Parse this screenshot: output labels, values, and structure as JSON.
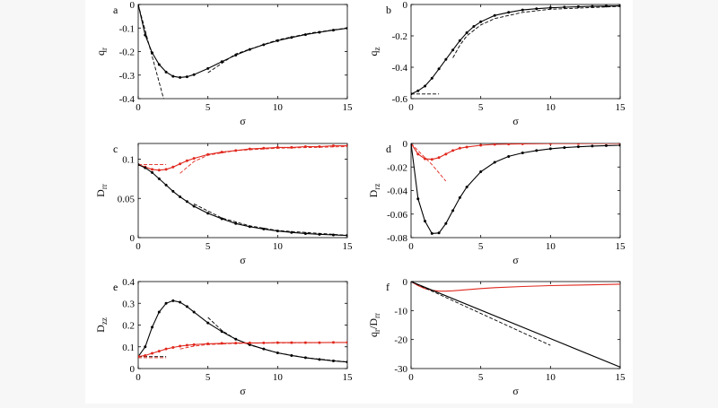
{
  "figure": {
    "chart_data": [
      {
        "panel_letter": "a",
        "type": "line",
        "xlabel": "σ",
        "ylabel": "q",
        "ylabel_sub": "r",
        "xlim": [
          0,
          15
        ],
        "ylim": [
          -0.4,
          0
        ],
        "xticks": [
          0,
          5,
          10,
          15
        ],
        "xtick_labels": [
          "0",
          "5",
          "10",
          "15"
        ],
        "yticks": [
          0,
          -0.1,
          -0.2,
          -0.3,
          -0.4
        ],
        "ytick_labels": [
          "0",
          "-0.1",
          "-0.2",
          "-0.3",
          "-0.4"
        ],
        "grid": false,
        "series": [
          {
            "color": "#000000",
            "style": "solid",
            "markers": true,
            "x": [
              0,
              0.5,
              1,
              1.5,
              2,
              2.5,
              3,
              3.5,
              4,
              5,
              6,
              7,
              8,
              9,
              10,
              11,
              12,
              13,
              14,
              15
            ],
            "y": [
              0,
              -0.13,
              -0.205,
              -0.255,
              -0.287,
              -0.305,
              -0.31,
              -0.307,
              -0.298,
              -0.272,
              -0.243,
              -0.215,
              -0.191,
              -0.171,
              -0.154,
              -0.14,
              -0.128,
              -0.118,
              -0.109,
              -0.101
            ]
          },
          {
            "color": "#000000",
            "style": "dashed",
            "markers": false,
            "x": [
              0,
              0.5,
              1,
              1.5,
              2
            ],
            "y": [
              0,
              -0.11,
              -0.22,
              -0.33,
              -0.44
            ]
          },
          {
            "color": "#000000",
            "style": "dashed",
            "markers": false,
            "x": [
              5,
              7,
              10,
              12.5,
              15
            ],
            "y": [
              -0.29,
              -0.21,
              -0.15,
              -0.12,
              -0.1
            ]
          }
        ]
      },
      {
        "panel_letter": "b",
        "type": "line",
        "xlabel": "σ",
        "ylabel": "q",
        "ylabel_sub": "z",
        "xlim": [
          0,
          15
        ],
        "ylim": [
          -0.6,
          0
        ],
        "xticks": [
          0,
          5,
          10,
          15
        ],
        "xtick_labels": [
          "0",
          "5",
          "10",
          "15"
        ],
        "yticks": [
          0,
          -0.2,
          -0.4,
          -0.6
        ],
        "ytick_labels": [
          "0",
          "-0.2",
          "-0.4",
          "-0.6"
        ],
        "grid": false,
        "series": [
          {
            "color": "#000000",
            "style": "solid",
            "markers": true,
            "x": [
              0,
              0.5,
              1,
              1.5,
              2,
              2.5,
              3,
              3.5,
              4,
              4.5,
              5,
              6,
              7,
              8,
              9,
              10,
              11,
              12,
              13,
              14,
              15
            ],
            "y": [
              -0.57,
              -0.55,
              -0.52,
              -0.47,
              -0.41,
              -0.35,
              -0.29,
              -0.23,
              -0.18,
              -0.14,
              -0.11,
              -0.07,
              -0.05,
              -0.035,
              -0.027,
              -0.021,
              -0.017,
              -0.014,
              -0.012,
              -0.01,
              -0.009
            ]
          },
          {
            "color": "#000000",
            "style": "dashed",
            "markers": false,
            "x": [
              0,
              2
            ],
            "y": [
              -0.57,
              -0.57
            ]
          },
          {
            "color": "#000000",
            "style": "dashed",
            "markers": false,
            "x": [
              3,
              3.5,
              4,
              5,
              6,
              8,
              10,
              15
            ],
            "y": [
              -0.34,
              -0.26,
              -0.2,
              -0.13,
              -0.09,
              -0.05,
              -0.03,
              -0.012
            ]
          }
        ]
      },
      {
        "panel_letter": "c",
        "type": "line",
        "xlabel": "σ",
        "ylabel": "D",
        "ylabel_sub": "rr",
        "xlim": [
          0,
          15
        ],
        "ylim": [
          0,
          0.12
        ],
        "xticks": [
          0,
          5,
          10,
          15
        ],
        "xtick_labels": [
          "0",
          "5",
          "10",
          "15"
        ],
        "yticks": [
          0,
          0.05,
          0.1
        ],
        "ytick_labels": [
          "0",
          "0.05",
          "0.1"
        ],
        "grid": false,
        "series": [
          {
            "color": "#e0281e",
            "style": "solid",
            "markers": true,
            "x": [
              0,
              0.5,
              1,
              1.5,
              2,
              2.5,
              3,
              3.5,
              4,
              5,
              6,
              7,
              8,
              9,
              10,
              11,
              12,
              13,
              14,
              15
            ],
            "y": [
              0.093,
              0.09,
              0.087,
              0.086,
              0.087,
              0.09,
              0.094,
              0.098,
              0.101,
              0.106,
              0.109,
              0.111,
              0.113,
              0.114,
              0.115,
              0.115,
              0.116,
              0.116,
              0.117,
              0.117
            ]
          },
          {
            "color": "#e0281e",
            "style": "dashed",
            "markers": false,
            "x": [
              0,
              2
            ],
            "y": [
              0.093,
              0.093
            ]
          },
          {
            "color": "#e0281e",
            "style": "dashed",
            "markers": false,
            "x": [
              3,
              4,
              5,
              7,
              10,
              15
            ],
            "y": [
              0.082,
              0.097,
              0.105,
              0.111,
              0.114,
              0.116
            ]
          },
          {
            "color": "#000000",
            "style": "solid",
            "markers": true,
            "x": [
              0,
              0.5,
              1,
              1.5,
              2,
              2.5,
              3,
              3.5,
              4,
              5,
              6,
              7,
              8,
              9,
              10,
              11,
              12,
              13,
              14,
              15
            ],
            "y": [
              0.093,
              0.089,
              0.083,
              0.075,
              0.067,
              0.059,
              0.052,
              0.046,
              0.04,
              0.031,
              0.024,
              0.018,
              0.014,
              0.011,
              0.0085,
              0.0066,
              0.0052,
              0.0042,
              0.0034,
              0.0028
            ]
          },
          {
            "color": "#000000",
            "style": "dashed",
            "markers": false,
            "x": [
              4,
              5,
              6,
              8,
              10,
              15
            ],
            "y": [
              0.043,
              0.034,
              0.025,
              0.015,
              0.009,
              0.003
            ]
          }
        ]
      },
      {
        "panel_letter": "d",
        "type": "line",
        "xlabel": "σ",
        "ylabel": "D",
        "ylabel_sub": "rz",
        "xlim": [
          0,
          15
        ],
        "ylim": [
          -0.08,
          0
        ],
        "xticks": [
          0,
          5,
          10,
          15
        ],
        "xtick_labels": [
          "0",
          "5",
          "10",
          "15"
        ],
        "yticks": [
          0,
          -0.02,
          -0.04,
          -0.06,
          -0.08
        ],
        "ytick_labels": [
          "0",
          "-0.02",
          "-0.04",
          "-0.06",
          "-0.08"
        ],
        "grid": false,
        "series": [
          {
            "color": "#e0281e",
            "style": "solid",
            "markers": true,
            "x": [
              0,
              0.5,
              1,
              1.5,
              2,
              2.5,
              3,
              3.5,
              4,
              5,
              6,
              7,
              8,
              10,
              12,
              15
            ],
            "y": [
              0,
              -0.009,
              -0.013,
              -0.0135,
              -0.012,
              -0.009,
              -0.006,
              -0.004,
              -0.003,
              -0.0015,
              -0.0008,
              -0.0005,
              -0.0003,
              -0.0001,
              -5e-05,
              0
            ]
          },
          {
            "color": "#e0281e",
            "style": "dashed",
            "markers": false,
            "x": [
              0,
              0.5,
              1,
              1.5,
              2,
              2.5
            ],
            "y": [
              0,
              -0.006,
              -0.012,
              -0.018,
              -0.025,
              -0.032
            ]
          },
          {
            "color": "#000000",
            "style": "solid",
            "markers": true,
            "x": [
              0,
              0.5,
              1,
              1.5,
              2,
              2.5,
              3,
              3.5,
              4,
              5,
              6,
              7,
              8,
              9,
              10,
              11,
              12,
              13,
              14,
              15
            ],
            "y": [
              0,
              -0.047,
              -0.066,
              -0.0765,
              -0.076,
              -0.068,
              -0.057,
              -0.046,
              -0.037,
              -0.024,
              -0.016,
              -0.011,
              -0.008,
              -0.006,
              -0.0045,
              -0.0035,
              -0.0028,
              -0.0022,
              -0.0018,
              -0.0015
            ]
          }
        ]
      },
      {
        "panel_letter": "e",
        "type": "line",
        "xlabel": "σ",
        "ylabel": "D",
        "ylabel_sub": "zz",
        "xlim": [
          0,
          15
        ],
        "ylim": [
          0,
          0.4
        ],
        "xticks": [
          0,
          5,
          10,
          15
        ],
        "xtick_labels": [
          "0",
          "5",
          "10",
          "15"
        ],
        "yticks": [
          0,
          0.1,
          0.2,
          0.3,
          0.4
        ],
        "ytick_labels": [
          "0",
          "0.1",
          "0.2",
          "0.3",
          "0.4"
        ],
        "grid": false,
        "series": [
          {
            "color": "#000000",
            "style": "solid",
            "markers": true,
            "x": [
              0,
              0.5,
              1,
              1.5,
              2,
              2.5,
              3,
              3.5,
              4,
              5,
              6,
              7,
              8,
              9,
              10,
              11,
              12,
              13,
              14,
              15
            ],
            "y": [
              0.055,
              0.1,
              0.19,
              0.26,
              0.3,
              0.312,
              0.305,
              0.285,
              0.26,
              0.21,
              0.17,
              0.135,
              0.11,
              0.09,
              0.072,
              0.06,
              0.05,
              0.042,
              0.035,
              0.03
            ]
          },
          {
            "color": "#000000",
            "style": "dashed",
            "markers": false,
            "x": [
              0,
              2
            ],
            "y": [
              0.055,
              0.055
            ]
          },
          {
            "color": "#000000",
            "style": "dashed",
            "markers": false,
            "x": [
              5,
              6,
              7,
              8,
              10,
              12,
              15
            ],
            "y": [
              0.235,
              0.175,
              0.135,
              0.108,
              0.072,
              0.05,
              0.03
            ]
          },
          {
            "color": "#e0281e",
            "style": "solid",
            "markers": true,
            "x": [
              0,
              0.5,
              1,
              1.5,
              2,
              2.5,
              3,
              3.5,
              4,
              5,
              6,
              7,
              8,
              9,
              10,
              11,
              12,
              13,
              14,
              15
            ],
            "y": [
              0.055,
              0.06,
              0.07,
              0.08,
              0.09,
              0.097,
              0.103,
              0.107,
              0.11,
              0.114,
              0.116,
              0.117,
              0.118,
              0.118,
              0.119,
              0.119,
              0.119,
              0.119,
              0.12,
              0.12
            ]
          },
          {
            "color": "#e0281e",
            "style": "dashed",
            "markers": false,
            "x": [
              0,
              2
            ],
            "y": [
              0.05,
              0.05
            ]
          },
          {
            "color": "#e0281e",
            "style": "dashed",
            "markers": false,
            "x": [
              3,
              4,
              5,
              7,
              10,
              15
            ],
            "y": [
              0.09,
              0.103,
              0.11,
              0.116,
              0.118,
              0.12
            ]
          }
        ]
      },
      {
        "panel_letter": "f",
        "type": "line",
        "xlabel": "σ",
        "ylabel": "q",
        "ylabel_sub": "r",
        "ylabel_mid": "/D",
        "ylabel_sub2": "rr",
        "xlim": [
          0,
          15
        ],
        "ylim": [
          -30,
          0
        ],
        "xticks": [
          0,
          5,
          10,
          15
        ],
        "xtick_labels": [
          "0",
          "5",
          "10",
          "15"
        ],
        "yticks": [
          0,
          -10,
          -20,
          -30
        ],
        "ytick_labels": [
          "0",
          "-10",
          "-20",
          "-30"
        ],
        "grid": false,
        "series": [
          {
            "color": "#e0281e",
            "style": "solid",
            "markers": false,
            "x": [
              0,
              0.5,
              1,
              1.5,
              2,
              2.5,
              3,
              4,
              5,
              6,
              8,
              10,
              12,
              15
            ],
            "y": [
              0,
              -1.4,
              -2.4,
              -3,
              -3.3,
              -3.3,
              -3.2,
              -2.8,
              -2.4,
              -2.1,
              -1.7,
              -1.4,
              -1.2,
              -0.9
            ]
          },
          {
            "color": "#000000",
            "style": "solid",
            "markers": false,
            "x": [
              0,
              15
            ],
            "y": [
              0,
              -29.5
            ]
          },
          {
            "color": "#000000",
            "style": "dashed",
            "markers": false,
            "x": [
              0,
              10
            ],
            "y": [
              0,
              -22
            ]
          }
        ]
      }
    ]
  }
}
